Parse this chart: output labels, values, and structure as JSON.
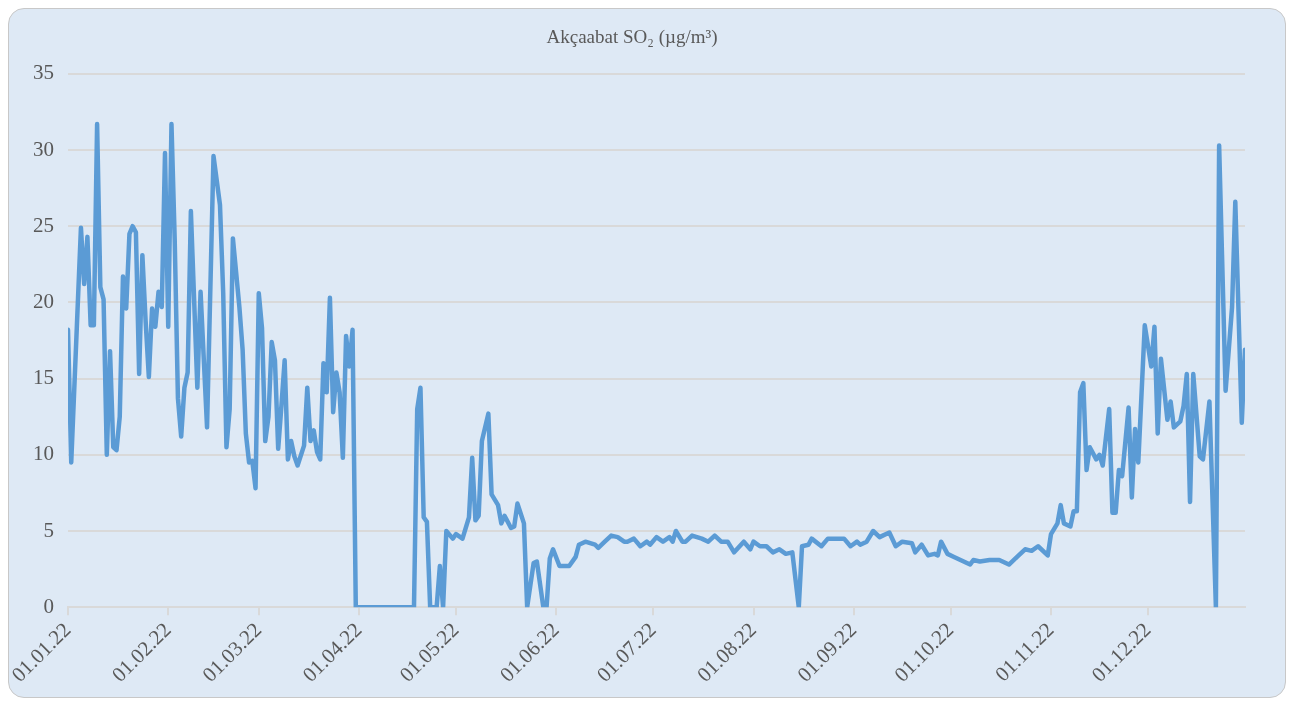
{
  "chart_data": {
    "type": "line",
    "title": "Akçaabat SO₂ (µg/m³)",
    "x": [
      "2022-01-01",
      "2022-01-02",
      "2022-01-05",
      "2022-01-06",
      "2022-01-07",
      "2022-01-08",
      "2022-01-09",
      "2022-01-10",
      "2022-01-11",
      "2022-01-12",
      "2022-01-13",
      "2022-01-14",
      "2022-01-15",
      "2022-01-16",
      "2022-01-17",
      "2022-01-18",
      "2022-01-19",
      "2022-01-20",
      "2022-01-21",
      "2022-01-22",
      "2022-01-23",
      "2022-01-24",
      "2022-01-25",
      "2022-01-26",
      "2022-01-27",
      "2022-01-28",
      "2022-01-29",
      "2022-01-30",
      "2022-01-31",
      "2022-02-01",
      "2022-02-02",
      "2022-02-03",
      "2022-02-04",
      "2022-02-05",
      "2022-02-06",
      "2022-02-07",
      "2022-02-08",
      "2022-02-10",
      "2022-02-11",
      "2022-02-13",
      "2022-02-15",
      "2022-02-17",
      "2022-02-18",
      "2022-02-19",
      "2022-02-20",
      "2022-02-21",
      "2022-02-23",
      "2022-02-24",
      "2022-02-25",
      "2022-02-26",
      "2022-02-27",
      "2022-02-28",
      "2022-03-01",
      "2022-03-02",
      "2022-03-03",
      "2022-03-04",
      "2022-03-05",
      "2022-03-06",
      "2022-03-07",
      "2022-03-08",
      "2022-03-09",
      "2022-03-10",
      "2022-03-11",
      "2022-03-12",
      "2022-03-13",
      "2022-03-15",
      "2022-03-16",
      "2022-03-17",
      "2022-03-18",
      "2022-03-19",
      "2022-03-20",
      "2022-03-21",
      "2022-03-22",
      "2022-03-23",
      "2022-03-24",
      "2022-03-25",
      "2022-03-26",
      "2022-03-27",
      "2022-03-28",
      "2022-03-29",
      "2022-03-30",
      "2022-03-31",
      "2022-04-18",
      "2022-04-19",
      "2022-04-20",
      "2022-04-21",
      "2022-04-22",
      "2022-04-23",
      "2022-04-25",
      "2022-04-26",
      "2022-04-27",
      "2022-04-28",
      "2022-04-30",
      "2022-05-01",
      "2022-05-03",
      "2022-05-05",
      "2022-05-06",
      "2022-05-07",
      "2022-05-08",
      "2022-05-09",
      "2022-05-11",
      "2022-05-12",
      "2022-05-14",
      "2022-05-15",
      "2022-05-16",
      "2022-05-18",
      "2022-05-19",
      "2022-05-20",
      "2022-05-22",
      "2022-05-23",
      "2022-05-25",
      "2022-05-26",
      "2022-05-28",
      "2022-05-29",
      "2022-05-30",
      "2022-05-31",
      "2022-06-02",
      "2022-06-05",
      "2022-06-07",
      "2022-06-08",
      "2022-06-10",
      "2022-06-13",
      "2022-06-14",
      "2022-06-16",
      "2022-06-18",
      "2022-06-20",
      "2022-06-22",
      "2022-06-23",
      "2022-06-25",
      "2022-06-27",
      "2022-06-29",
      "2022-06-30",
      "2022-07-02",
      "2022-07-04",
      "2022-07-06",
      "2022-07-07",
      "2022-07-08",
      "2022-07-10",
      "2022-07-11",
      "2022-07-13",
      "2022-07-16",
      "2022-07-18",
      "2022-07-20",
      "2022-07-22",
      "2022-07-24",
      "2022-07-26",
      "2022-07-29",
      "2022-07-31",
      "2022-08-01",
      "2022-08-03",
      "2022-08-05",
      "2022-08-07",
      "2022-08-09",
      "2022-08-11",
      "2022-08-13",
      "2022-08-15",
      "2022-08-16",
      "2022-08-18",
      "2022-08-19",
      "2022-08-22",
      "2022-08-24",
      "2022-08-26",
      "2022-08-29",
      "2022-08-31",
      "2022-09-02",
      "2022-09-03",
      "2022-09-05",
      "2022-09-07",
      "2022-09-09",
      "2022-09-12",
      "2022-09-14",
      "2022-09-16",
      "2022-09-19",
      "2022-09-20",
      "2022-09-22",
      "2022-09-24",
      "2022-09-26",
      "2022-09-27",
      "2022-09-28",
      "2022-09-30",
      "2022-10-02",
      "2022-10-04",
      "2022-10-07",
      "2022-10-08",
      "2022-10-10",
      "2022-10-13",
      "2022-10-16",
      "2022-10-19",
      "2022-10-22",
      "2022-10-24",
      "2022-10-26",
      "2022-10-28",
      "2022-10-31",
      "2022-11-01",
      "2022-11-03",
      "2022-11-04",
      "2022-11-05",
      "2022-11-07",
      "2022-11-08",
      "2022-11-09",
      "2022-11-10",
      "2022-11-11",
      "2022-11-12",
      "2022-11-13",
      "2022-11-15",
      "2022-11-16",
      "2022-11-17",
      "2022-11-19",
      "2022-11-20",
      "2022-11-21",
      "2022-11-22",
      "2022-11-23",
      "2022-11-25",
      "2022-11-26",
      "2022-11-27",
      "2022-11-28",
      "2022-11-30",
      "2022-12-02",
      "2022-12-03",
      "2022-12-04",
      "2022-12-05",
      "2022-12-07",
      "2022-12-08",
      "2022-12-09",
      "2022-12-11",
      "2022-12-12",
      "2022-12-13",
      "2022-12-14",
      "2022-12-15",
      "2022-12-17",
      "2022-12-18",
      "2022-12-20",
      "2022-12-22",
      "2022-12-23",
      "2022-12-25",
      "2022-12-27",
      "2022-12-28",
      "2022-12-30",
      "2022-12-31"
    ],
    "series": [
      {
        "color": "#5b9bd5",
        "values": [
          18.2,
          9.5,
          24.9,
          21.2,
          24.3,
          18.5,
          18.5,
          31.7,
          21,
          20.2,
          10.0,
          16.8,
          10.5,
          10.3,
          12.5,
          21.7,
          19.6,
          24.5,
          25.0,
          24.6,
          15.3,
          23.1,
          18.8,
          15.1,
          19.6,
          18.4,
          20.7,
          19.7,
          29.8,
          18.4,
          31.7,
          24.1,
          13.7,
          11.2,
          14.4,
          15.4,
          26.0,
          14.4,
          20.7,
          11.8,
          29.6,
          26.4,
          20.6,
          10.5,
          13.0,
          24.2,
          19.7,
          16.9,
          11.4,
          9.5,
          9.6,
          7.8,
          20.6,
          18.3,
          10.9,
          12.5,
          17.4,
          16.2,
          10.4,
          13.2,
          16.2,
          9.7,
          10.9,
          9.9,
          9.3,
          10.6,
          14.4,
          10.9,
          11.6,
          10.2,
          9.7,
          16.0,
          14.1,
          20.3,
          12.8,
          15.4,
          14.1,
          9.8,
          17.8,
          15.8,
          18.2,
          0,
          0,
          13.0,
          14.4,
          5.9,
          5.6,
          0,
          0,
          2.7,
          0,
          5.0,
          4.5,
          4.8,
          4.5,
          5.9,
          9.8,
          5.7,
          6.0,
          10.9,
          12.7,
          7.4,
          6.7,
          5.5,
          6.0,
          5.2,
          5.3,
          6.8,
          5.5,
          0,
          2.9,
          3.0,
          0,
          0,
          3.2,
          3.8,
          2.7,
          2.7,
          3.3,
          4.1,
          4.3,
          4.1,
          3.9,
          4.3,
          4.7,
          4.6,
          4.3,
          4.3,
          4.5,
          4.0,
          4.3,
          4.1,
          4.6,
          4.3,
          4.6,
          4.3,
          5.0,
          4.3,
          4.3,
          4.7,
          4.5,
          4.3,
          4.7,
          4.3,
          4.3,
          3.6,
          4.3,
          3.8,
          4.3,
          4.0,
          4.0,
          3.6,
          3.8,
          3.5,
          3.6,
          0,
          4.0,
          4.1,
          4.5,
          4.0,
          4.5,
          4.5,
          4.5,
          4.0,
          4.3,
          4.1,
          4.3,
          5.0,
          4.6,
          4.9,
          4.0,
          4.3,
          4.2,
          3.6,
          4.1,
          3.4,
          3.5,
          3.4,
          4.3,
          3.5,
          3.3,
          3.1,
          2.8,
          3.1,
          3.0,
          3.1,
          3.1,
          2.8,
          3.4,
          3.8,
          3.7,
          4.0,
          3.4,
          4.8,
          5.5,
          6.7,
          5.5,
          5.3,
          6.3,
          6.3,
          14.1,
          14.7,
          9.0,
          10.5,
          9.7,
          10.0,
          9.3,
          13.0,
          6.2,
          6.2,
          9.0,
          8.6,
          13.1,
          7.2,
          11.7,
          9.5,
          18.5,
          15.8,
          18.4,
          11.4,
          16.3,
          12.3,
          13.5,
          11.8,
          12.2,
          13.2,
          15.3,
          6.9,
          15.3,
          9.9,
          9.7,
          13.5,
          0,
          30.3,
          14.2,
          19.7,
          26.6,
          12.1,
          16.9
        ]
      }
    ],
    "xlim": [
      "2022-01-01",
      "2022-12-31"
    ],
    "xticks": [
      {
        "value": "2022-01-01",
        "label": "01.01.22"
      },
      {
        "value": "2022-02-01",
        "label": "01.02.22"
      },
      {
        "value": "2022-03-01",
        "label": "01.03.22"
      },
      {
        "value": "2022-04-01",
        "label": "01.04.22"
      },
      {
        "value": "2022-05-01",
        "label": "01.05.22"
      },
      {
        "value": "2022-06-01",
        "label": "01.06.22"
      },
      {
        "value": "2022-07-01",
        "label": "01.07.22"
      },
      {
        "value": "2022-08-01",
        "label": "01.08.22"
      },
      {
        "value": "2022-09-01",
        "label": "01.09.22"
      },
      {
        "value": "2022-10-01",
        "label": "01.10.22"
      },
      {
        "value": "2022-11-01",
        "label": "01.11.22"
      },
      {
        "value": "2022-12-01",
        "label": "01.12.22"
      }
    ],
    "ylim": [
      0,
      35
    ],
    "yticks": [
      0,
      5,
      10,
      15,
      20,
      25,
      30,
      35
    ],
    "grid": "y",
    "legend": false,
    "marker": "none",
    "line_style": "solid"
  }
}
